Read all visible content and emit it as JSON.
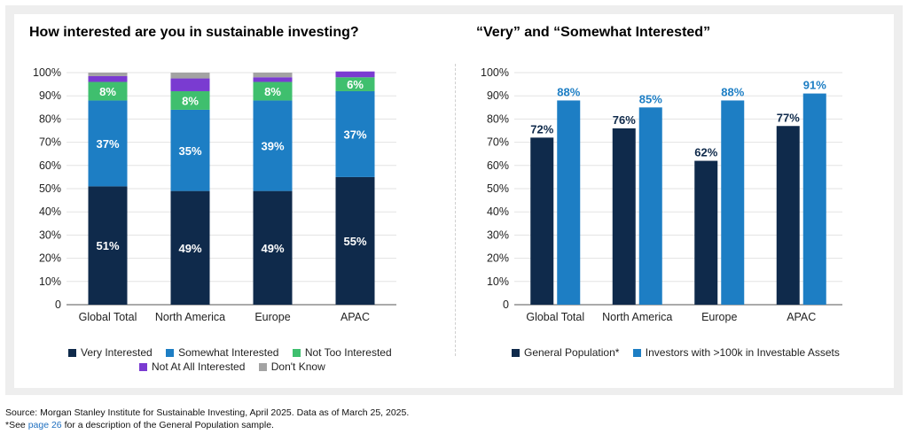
{
  "colors": {
    "very": "#0f2a4b",
    "somewhat": "#1d7ec4",
    "not_too": "#3fbf6e",
    "not_at_all": "#7a3bd1",
    "dont_know": "#a3a3a3",
    "general": "#0f2a4b",
    "investors": "#1d7ec4"
  },
  "chart_data": [
    {
      "type": "bar",
      "stacked": true,
      "title": "How interested are you in sustainable investing?",
      "categories": [
        "Global Total",
        "North America",
        "Europe",
        "APAC"
      ],
      "ylim": [
        0,
        100
      ],
      "yticks": [
        "0",
        "10%",
        "20%",
        "30%",
        "40%",
        "50%",
        "60%",
        "70%",
        "80%",
        "90%",
        "100%"
      ],
      "series": [
        {
          "name": "Very Interested",
          "key": "very",
          "values": [
            51,
            49,
            49,
            55
          ],
          "labels": [
            "51%",
            "49%",
            "49%",
            "55%"
          ]
        },
        {
          "name": "Somewhat Interested",
          "key": "somewhat",
          "values": [
            37,
            35,
            39,
            37
          ],
          "labels": [
            "37%",
            "35%",
            "39%",
            "37%"
          ]
        },
        {
          "name": "Not Too Interested",
          "key": "not_too",
          "values": [
            8,
            8,
            8,
            6
          ],
          "labels": [
            "8%",
            "8%",
            "8%",
            "6%"
          ]
        },
        {
          "name": "Not At All Interested",
          "key": "not_at_all",
          "values": [
            2.5,
            5.5,
            2,
            2.5
          ]
        },
        {
          "name": "Don't Know",
          "key": "dont_know",
          "values": [
            1.5,
            2.5,
            2,
            0
          ]
        }
      ]
    },
    {
      "type": "bar",
      "stacked": false,
      "title": "“Very” and “Somewhat Interested”",
      "categories": [
        "Global Total",
        "North America",
        "Europe",
        "APAC"
      ],
      "ylim": [
        0,
        100
      ],
      "yticks": [
        "0",
        "10%",
        "20%",
        "30%",
        "40%",
        "50%",
        "60%",
        "70%",
        "80%",
        "90%",
        "100%"
      ],
      "series": [
        {
          "name": "General Population*",
          "key": "general",
          "values": [
            72,
            76,
            62,
            77
          ],
          "labels": [
            "72%",
            "76%",
            "62%",
            "77%"
          ]
        },
        {
          "name": "Investors with >100k in Investable Assets",
          "key": "investors",
          "values": [
            88,
            85,
            88,
            91
          ],
          "labels": [
            "88%",
            "85%",
            "88%",
            "91%"
          ]
        }
      ]
    }
  ],
  "footer": {
    "source": "Source: Morgan Stanley Institute for Sustainable Investing, April 2025. Data as of March 25, 2025.",
    "note_prefix": "*See ",
    "note_link": "page 26",
    "note_suffix": " for a description of the General Population sample."
  }
}
